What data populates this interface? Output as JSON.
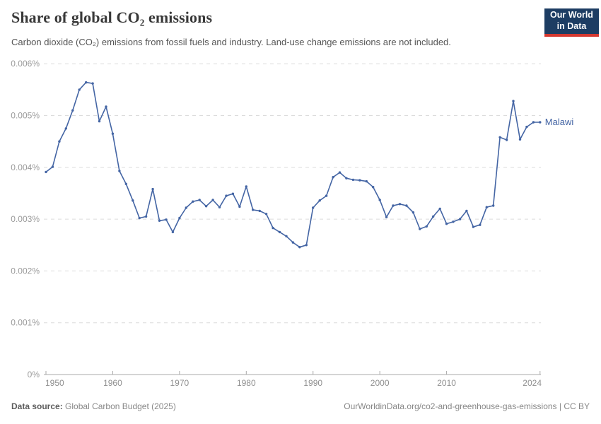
{
  "header": {
    "title": "Share of global CO₂ emissions",
    "subtitle": "Carbon dioxide (CO₂) emissions from fossil fuels and industry. Land-use change emissions are not included.",
    "logo": {
      "line1": "Our World",
      "line2": "in Data"
    }
  },
  "footer": {
    "source_label": "Data source:",
    "source_value": "Global Carbon Budget (2025)",
    "right_text": "OurWorldinData.org/co2-and-greenhouse-gas-emissions | CC BY"
  },
  "colors": {
    "line": "#4465a4",
    "entity_label": "#4465a4",
    "logo_bg": "#1d3d63",
    "logo_bar": "#d43830"
  },
  "chart_data": {
    "type": "line",
    "title": "Share of global CO₂ emissions",
    "xlabel": "",
    "ylabel": "",
    "unit": "%",
    "ylim": [
      0,
      0.006
    ],
    "xlim": [
      1950,
      2024
    ],
    "grid": "horizontal-dashed",
    "legend_position": "end-of-line-label",
    "y_ticks": [
      {
        "value": 0,
        "label": "0%"
      },
      {
        "value": 0.001,
        "label": "0.001%"
      },
      {
        "value": 0.002,
        "label": "0.002%"
      },
      {
        "value": 0.003,
        "label": "0.003%"
      },
      {
        "value": 0.004,
        "label": "0.004%"
      },
      {
        "value": 0.005,
        "label": "0.005%"
      },
      {
        "value": 0.006,
        "label": "0.006%"
      }
    ],
    "x_ticks": [
      {
        "year": 1950,
        "label": "1950"
      },
      {
        "year": 1960,
        "label": "1960"
      },
      {
        "year": 1970,
        "label": "1970"
      },
      {
        "year": 1980,
        "label": "1980"
      },
      {
        "year": 1990,
        "label": "1990"
      },
      {
        "year": 2000,
        "label": "2000"
      },
      {
        "year": 2010,
        "label": "2010"
      },
      {
        "year": 2024,
        "label": "2024"
      }
    ],
    "series": [
      {
        "name": "Malawi",
        "x": [
          1950,
          1951,
          1952,
          1953,
          1954,
          1955,
          1956,
          1957,
          1958,
          1959,
          1960,
          1961,
          1962,
          1963,
          1964,
          1965,
          1966,
          1967,
          1968,
          1969,
          1970,
          1971,
          1972,
          1973,
          1974,
          1975,
          1976,
          1977,
          1978,
          1979,
          1980,
          1981,
          1982,
          1983,
          1984,
          1985,
          1986,
          1987,
          1988,
          1989,
          1990,
          1991,
          1992,
          1993,
          1994,
          1995,
          1996,
          1997,
          1998,
          1999,
          2000,
          2001,
          2002,
          2003,
          2004,
          2005,
          2006,
          2007,
          2008,
          2009,
          2010,
          2011,
          2012,
          2013,
          2014,
          2015,
          2016,
          2017,
          2018,
          2019,
          2020,
          2021,
          2022,
          2023,
          2024
        ],
        "values": [
          0.00391,
          0.00401,
          0.0045,
          0.00475,
          0.0051,
          0.0055,
          0.00564,
          0.00562,
          0.00489,
          0.00517,
          0.00465,
          0.00393,
          0.00368,
          0.00336,
          0.00302,
          0.00305,
          0.00358,
          0.00297,
          0.00299,
          0.00275,
          0.00302,
          0.00322,
          0.00334,
          0.00337,
          0.00325,
          0.00337,
          0.00323,
          0.00345,
          0.00349,
          0.00324,
          0.00363,
          0.00318,
          0.00316,
          0.0031,
          0.00283,
          0.00275,
          0.00267,
          0.00255,
          0.00246,
          0.0025,
          0.00322,
          0.00336,
          0.00345,
          0.00381,
          0.0039,
          0.00379,
          0.00376,
          0.00375,
          0.00373,
          0.00362,
          0.00337,
          0.00304,
          0.00326,
          0.00329,
          0.00326,
          0.00313,
          0.00281,
          0.00286,
          0.00305,
          0.0032,
          0.00291,
          0.00295,
          0.003,
          0.00316,
          0.00285,
          0.00289,
          0.00323,
          0.00326,
          0.00458,
          0.00453,
          0.00528,
          0.00454,
          0.00478,
          0.00487,
          0.00487
        ]
      }
    ]
  }
}
